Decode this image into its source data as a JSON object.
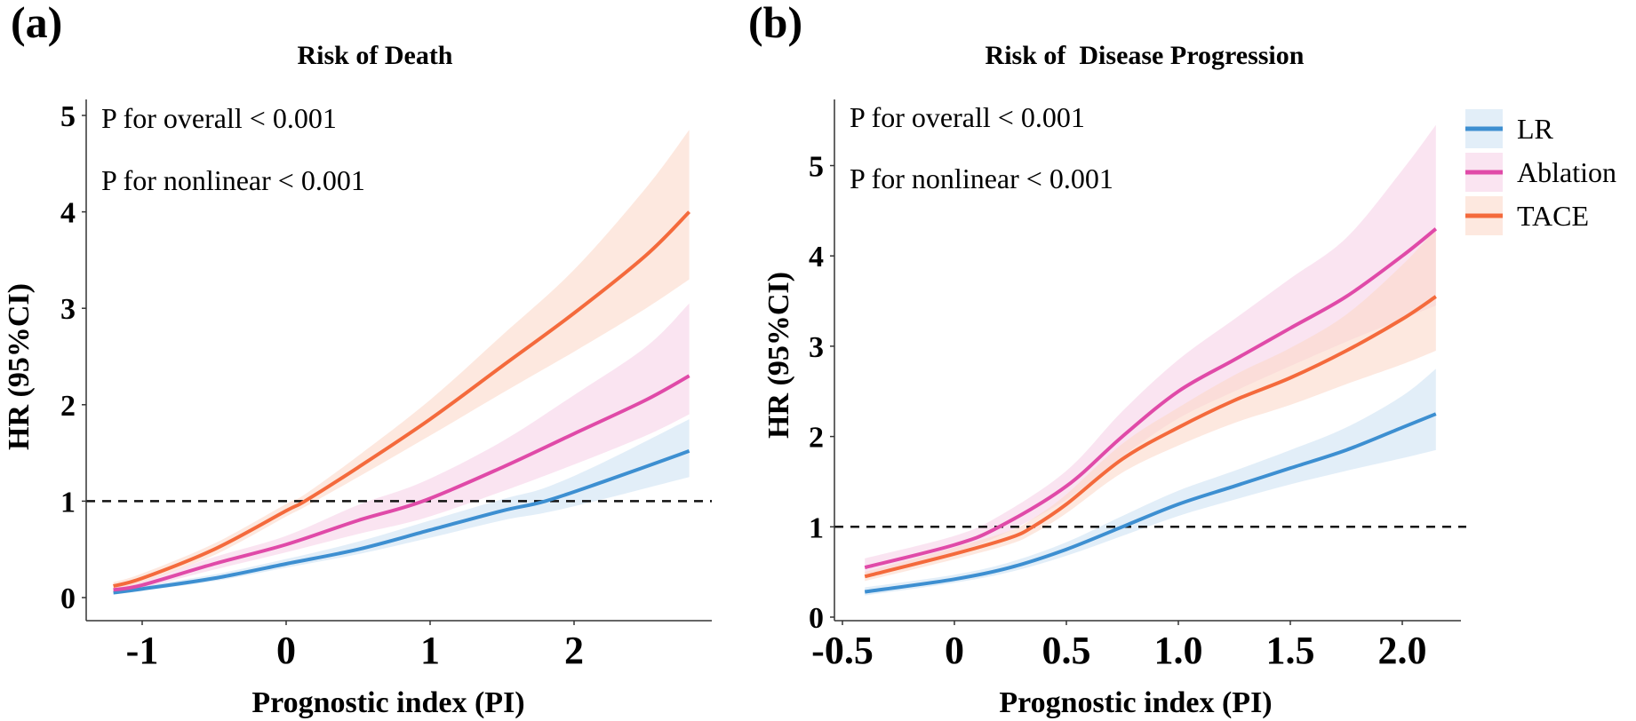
{
  "chart_data": [
    {
      "type": "line",
      "panel_label": "(a)",
      "title": "Risk of Death",
      "xlabel": "Prognostic index (PI)",
      "ylabel": "HR (95%CI)",
      "xlim": [
        -1.35,
        3.0
      ],
      "ylim": [
        0,
        5.2
      ],
      "xticks": [
        -1,
        0,
        1,
        2
      ],
      "xtick_labels": [
        "-1",
        "0",
        "1",
        "2"
      ],
      "yticks": [
        0,
        1,
        2,
        3,
        4,
        5
      ],
      "ytick_labels": [
        "0",
        "1",
        "2",
        "3",
        "4",
        "5"
      ],
      "reference_line": 1,
      "annotations": [
        "P for overall < 0.001",
        "P for nonlinear < 0.001"
      ],
      "grid": false,
      "series": [
        {
          "name": "LR",
          "color": "#3d8fd1",
          "band_color": "#cfe2f3",
          "x": [
            -1.2,
            -1.0,
            -0.5,
            0,
            0.5,
            1.0,
            1.5,
            1.8,
            2.2,
            2.8
          ],
          "y": [
            0.05,
            0.09,
            0.2,
            0.35,
            0.5,
            0.7,
            0.9,
            1.0,
            1.2,
            1.52
          ],
          "lower": [
            0.03,
            0.07,
            0.17,
            0.31,
            0.45,
            0.62,
            0.8,
            0.88,
            1.02,
            1.25
          ],
          "upper": [
            0.08,
            0.12,
            0.24,
            0.4,
            0.58,
            0.8,
            1.02,
            1.14,
            1.4,
            1.85
          ]
        },
        {
          "name": "Ablation",
          "color": "#e04aa8",
          "band_color": "#f6d2e8",
          "x": [
            -1.2,
            -1.0,
            -0.5,
            0,
            0.5,
            0.95,
            1.5,
            2.0,
            2.5,
            2.8
          ],
          "y": [
            0.08,
            0.13,
            0.35,
            0.55,
            0.8,
            1.0,
            1.35,
            1.7,
            2.05,
            2.3
          ],
          "lower": [
            0.05,
            0.1,
            0.29,
            0.47,
            0.66,
            0.82,
            1.1,
            1.38,
            1.68,
            1.9
          ],
          "upper": [
            0.11,
            0.17,
            0.42,
            0.64,
            0.96,
            1.2,
            1.62,
            2.1,
            2.6,
            3.05
          ]
        },
        {
          "name": "TACE",
          "color": "#f46a3c",
          "band_color": "#fcd8c9",
          "x": [
            -1.2,
            -1.0,
            -0.5,
            0,
            0.13,
            0.5,
            1.0,
            1.5,
            2.0,
            2.5,
            2.8
          ],
          "y": [
            0.12,
            0.2,
            0.5,
            0.9,
            1.0,
            1.35,
            1.85,
            2.4,
            2.95,
            3.55,
            4.0
          ],
          "lower": [
            0.08,
            0.16,
            0.44,
            0.84,
            0.94,
            1.25,
            1.68,
            2.12,
            2.55,
            3.0,
            3.3
          ],
          "upper": [
            0.16,
            0.25,
            0.56,
            0.97,
            1.07,
            1.47,
            2.05,
            2.72,
            3.4,
            4.25,
            4.85
          ]
        }
      ]
    },
    {
      "type": "line",
      "panel_label": "(b)",
      "title": "Risk of  Disease Progression",
      "xlabel": "Prognostic index (PI)",
      "ylabel": "HR (95%CI)",
      "xlim": [
        -0.55,
        2.26
      ],
      "ylim": [
        0,
        5.7
      ],
      "xticks": [
        -0.5,
        0,
        0.5,
        1.0,
        1.5,
        2.0
      ],
      "xtick_labels": [
        "-0.5",
        "0",
        "0.5",
        "1.0",
        "1.5",
        "2.0"
      ],
      "yticks": [
        0,
        1,
        2,
        3,
        4,
        5
      ],
      "ytick_labels": [
        "0",
        "1",
        "2",
        "3",
        "4",
        "5"
      ],
      "reference_line": 1,
      "annotations": [
        "P for overall < 0.001",
        "P for nonlinear < 0.001"
      ],
      "grid": false,
      "legend": {
        "position": "right",
        "entries": [
          "LR",
          "Ablation",
          "TACE"
        ]
      },
      "series": [
        {
          "name": "LR",
          "color": "#3d8fd1",
          "band_color": "#cfe2f3",
          "x": [
            -0.4,
            0,
            0.25,
            0.5,
            0.75,
            1.0,
            1.25,
            1.5,
            1.75,
            2.0,
            2.15
          ],
          "y": [
            0.28,
            0.42,
            0.55,
            0.75,
            1.0,
            1.25,
            1.45,
            1.65,
            1.85,
            2.1,
            2.25
          ],
          "lower": [
            0.24,
            0.38,
            0.5,
            0.68,
            0.9,
            1.12,
            1.3,
            1.47,
            1.62,
            1.76,
            1.85
          ],
          "upper": [
            0.33,
            0.47,
            0.61,
            0.83,
            1.12,
            1.4,
            1.62,
            1.85,
            2.1,
            2.45,
            2.75
          ]
        },
        {
          "name": "Ablation",
          "color": "#e04aa8",
          "band_color": "#f6d2e8",
          "x": [
            -0.4,
            0,
            0.2,
            0.5,
            0.75,
            1.0,
            1.25,
            1.5,
            1.75,
            2.0,
            2.15
          ],
          "y": [
            0.55,
            0.8,
            1.0,
            1.45,
            2.0,
            2.5,
            2.85,
            3.2,
            3.55,
            4.0,
            4.3
          ],
          "lower": [
            0.47,
            0.72,
            0.9,
            1.3,
            1.78,
            2.2,
            2.5,
            2.78,
            3.05,
            3.3,
            3.45
          ],
          "upper": [
            0.65,
            0.9,
            1.12,
            1.62,
            2.28,
            2.85,
            3.3,
            3.75,
            4.2,
            4.95,
            5.45
          ]
        },
        {
          "name": "TACE",
          "color": "#f46a3c",
          "band_color": "#fcd8c9",
          "x": [
            -0.4,
            0,
            0.25,
            0.35,
            0.5,
            0.75,
            1.0,
            1.25,
            1.5,
            1.75,
            2.0,
            2.15
          ],
          "y": [
            0.45,
            0.7,
            0.88,
            1.0,
            1.25,
            1.75,
            2.1,
            2.4,
            2.65,
            2.95,
            3.3,
            3.55
          ],
          "lower": [
            0.4,
            0.64,
            0.81,
            0.92,
            1.15,
            1.6,
            1.9,
            2.15,
            2.35,
            2.58,
            2.8,
            2.95
          ],
          "upper": [
            0.5,
            0.77,
            0.96,
            1.09,
            1.36,
            1.92,
            2.32,
            2.68,
            2.98,
            3.35,
            3.9,
            4.3
          ]
        }
      ]
    }
  ]
}
